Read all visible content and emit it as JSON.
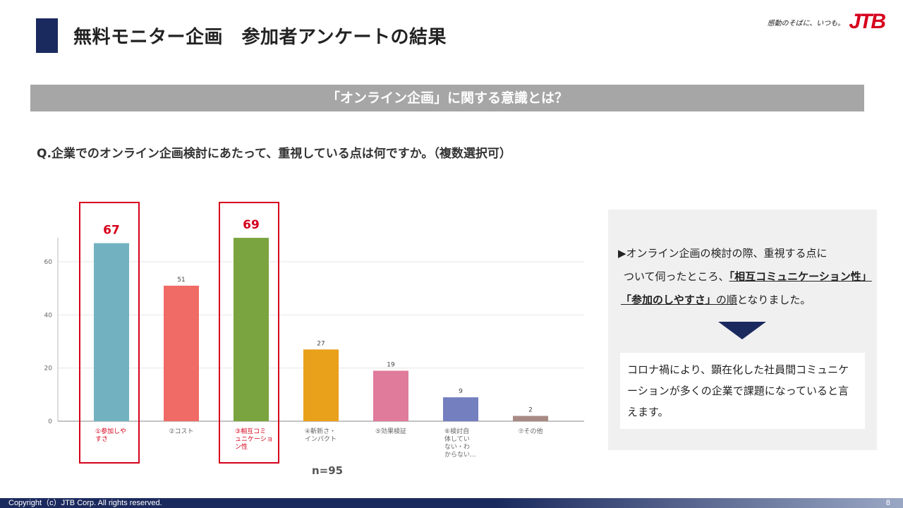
{
  "header": {
    "title": "無料モニター企画　参加者アンケートの結果",
    "logo_slogan": "感動のそばに、いつも。",
    "logo_mark": "JTB"
  },
  "section_header": "「オンライン企画」に関する意識とは？",
  "question": "Q.企業でのオンライン企画検討にあたって、重視している点は何ですか。（複数選択可）",
  "chart_data": {
    "type": "bar",
    "categories": [
      [
        "①参加しや",
        "すさ"
      ],
      [
        "②コスト"
      ],
      [
        "③相互コミ",
        "ュニケーショ",
        "ン性"
      ],
      [
        "④斬新さ・",
        "インパクト"
      ],
      [
        "⑤効果検証"
      ],
      [
        "⑥検討自",
        "体してい",
        "ない・わ",
        "からない…"
      ],
      [
        "⑦その他"
      ]
    ],
    "values": [
      67,
      51,
      69,
      27,
      19,
      9,
      2
    ],
    "colors": [
      "#72b2c0",
      "#f06b66",
      "#7aa440",
      "#e9a01b",
      "#e07b9b",
      "#747fc0",
      "#a88a85"
    ],
    "highlighted": [
      0,
      2
    ],
    "highlight_color": "#d6001c",
    "yticks": [
      0,
      20,
      40,
      60
    ],
    "ylim": [
      0,
      72
    ],
    "grid": true
  },
  "n_label": "n=95",
  "summary": {
    "line1": "▶オンライン企画の検討の際、重視する点に",
    "line2_prefix": "ついて伺ったところ、",
    "highlight1": "「相互コミュニケーション性」",
    "highlight2": "「参加のしやすさ」",
    "suffix_under": "の順",
    "suffix": "となりました。",
    "conclusion": "コロナ禍により、顕在化した社員間コミュニケーションが多くの企業で課題になっていると言えます。"
  },
  "footer": {
    "copyright": "Copyright（c）JTB Corp. All rights reserved.",
    "page_number": "8"
  }
}
